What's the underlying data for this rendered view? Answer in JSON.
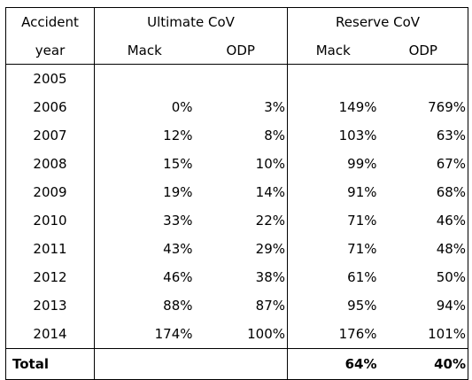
{
  "header": {
    "col0_line1": "Accident",
    "col0_line2": "year",
    "group1": "Ultimate CoV",
    "group2": "Reserve CoV",
    "sub1": "Mack",
    "sub2": "ODP",
    "sub3": "Mack",
    "sub4": "ODP"
  },
  "rows": [
    {
      "year": "2005",
      "ult_mack": "",
      "ult_odp": "",
      "res_mack": "",
      "res_odp": ""
    },
    {
      "year": "2006",
      "ult_mack": "0%",
      "ult_odp": "3%",
      "res_mack": "149%",
      "res_odp": "769%"
    },
    {
      "year": "2007",
      "ult_mack": "12%",
      "ult_odp": "8%",
      "res_mack": "103%",
      "res_odp": "63%"
    },
    {
      "year": "2008",
      "ult_mack": "15%",
      "ult_odp": "10%",
      "res_mack": "99%",
      "res_odp": "67%"
    },
    {
      "year": "2009",
      "ult_mack": "19%",
      "ult_odp": "14%",
      "res_mack": "91%",
      "res_odp": "68%"
    },
    {
      "year": "2010",
      "ult_mack": "33%",
      "ult_odp": "22%",
      "res_mack": "71%",
      "res_odp": "46%"
    },
    {
      "year": "2011",
      "ult_mack": "43%",
      "ult_odp": "29%",
      "res_mack": "71%",
      "res_odp": "48%"
    },
    {
      "year": "2012",
      "ult_mack": "46%",
      "ult_odp": "38%",
      "res_mack": "61%",
      "res_odp": "50%"
    },
    {
      "year": "2013",
      "ult_mack": "88%",
      "ult_odp": "87%",
      "res_mack": "95%",
      "res_odp": "94%"
    },
    {
      "year": "2014",
      "ult_mack": "174%",
      "ult_odp": "100%",
      "res_mack": "176%",
      "res_odp": "101%"
    }
  ],
  "total": {
    "label": "Total",
    "ult_mack": "",
    "ult_odp": "",
    "res_mack": "64%",
    "res_odp": "40%"
  }
}
